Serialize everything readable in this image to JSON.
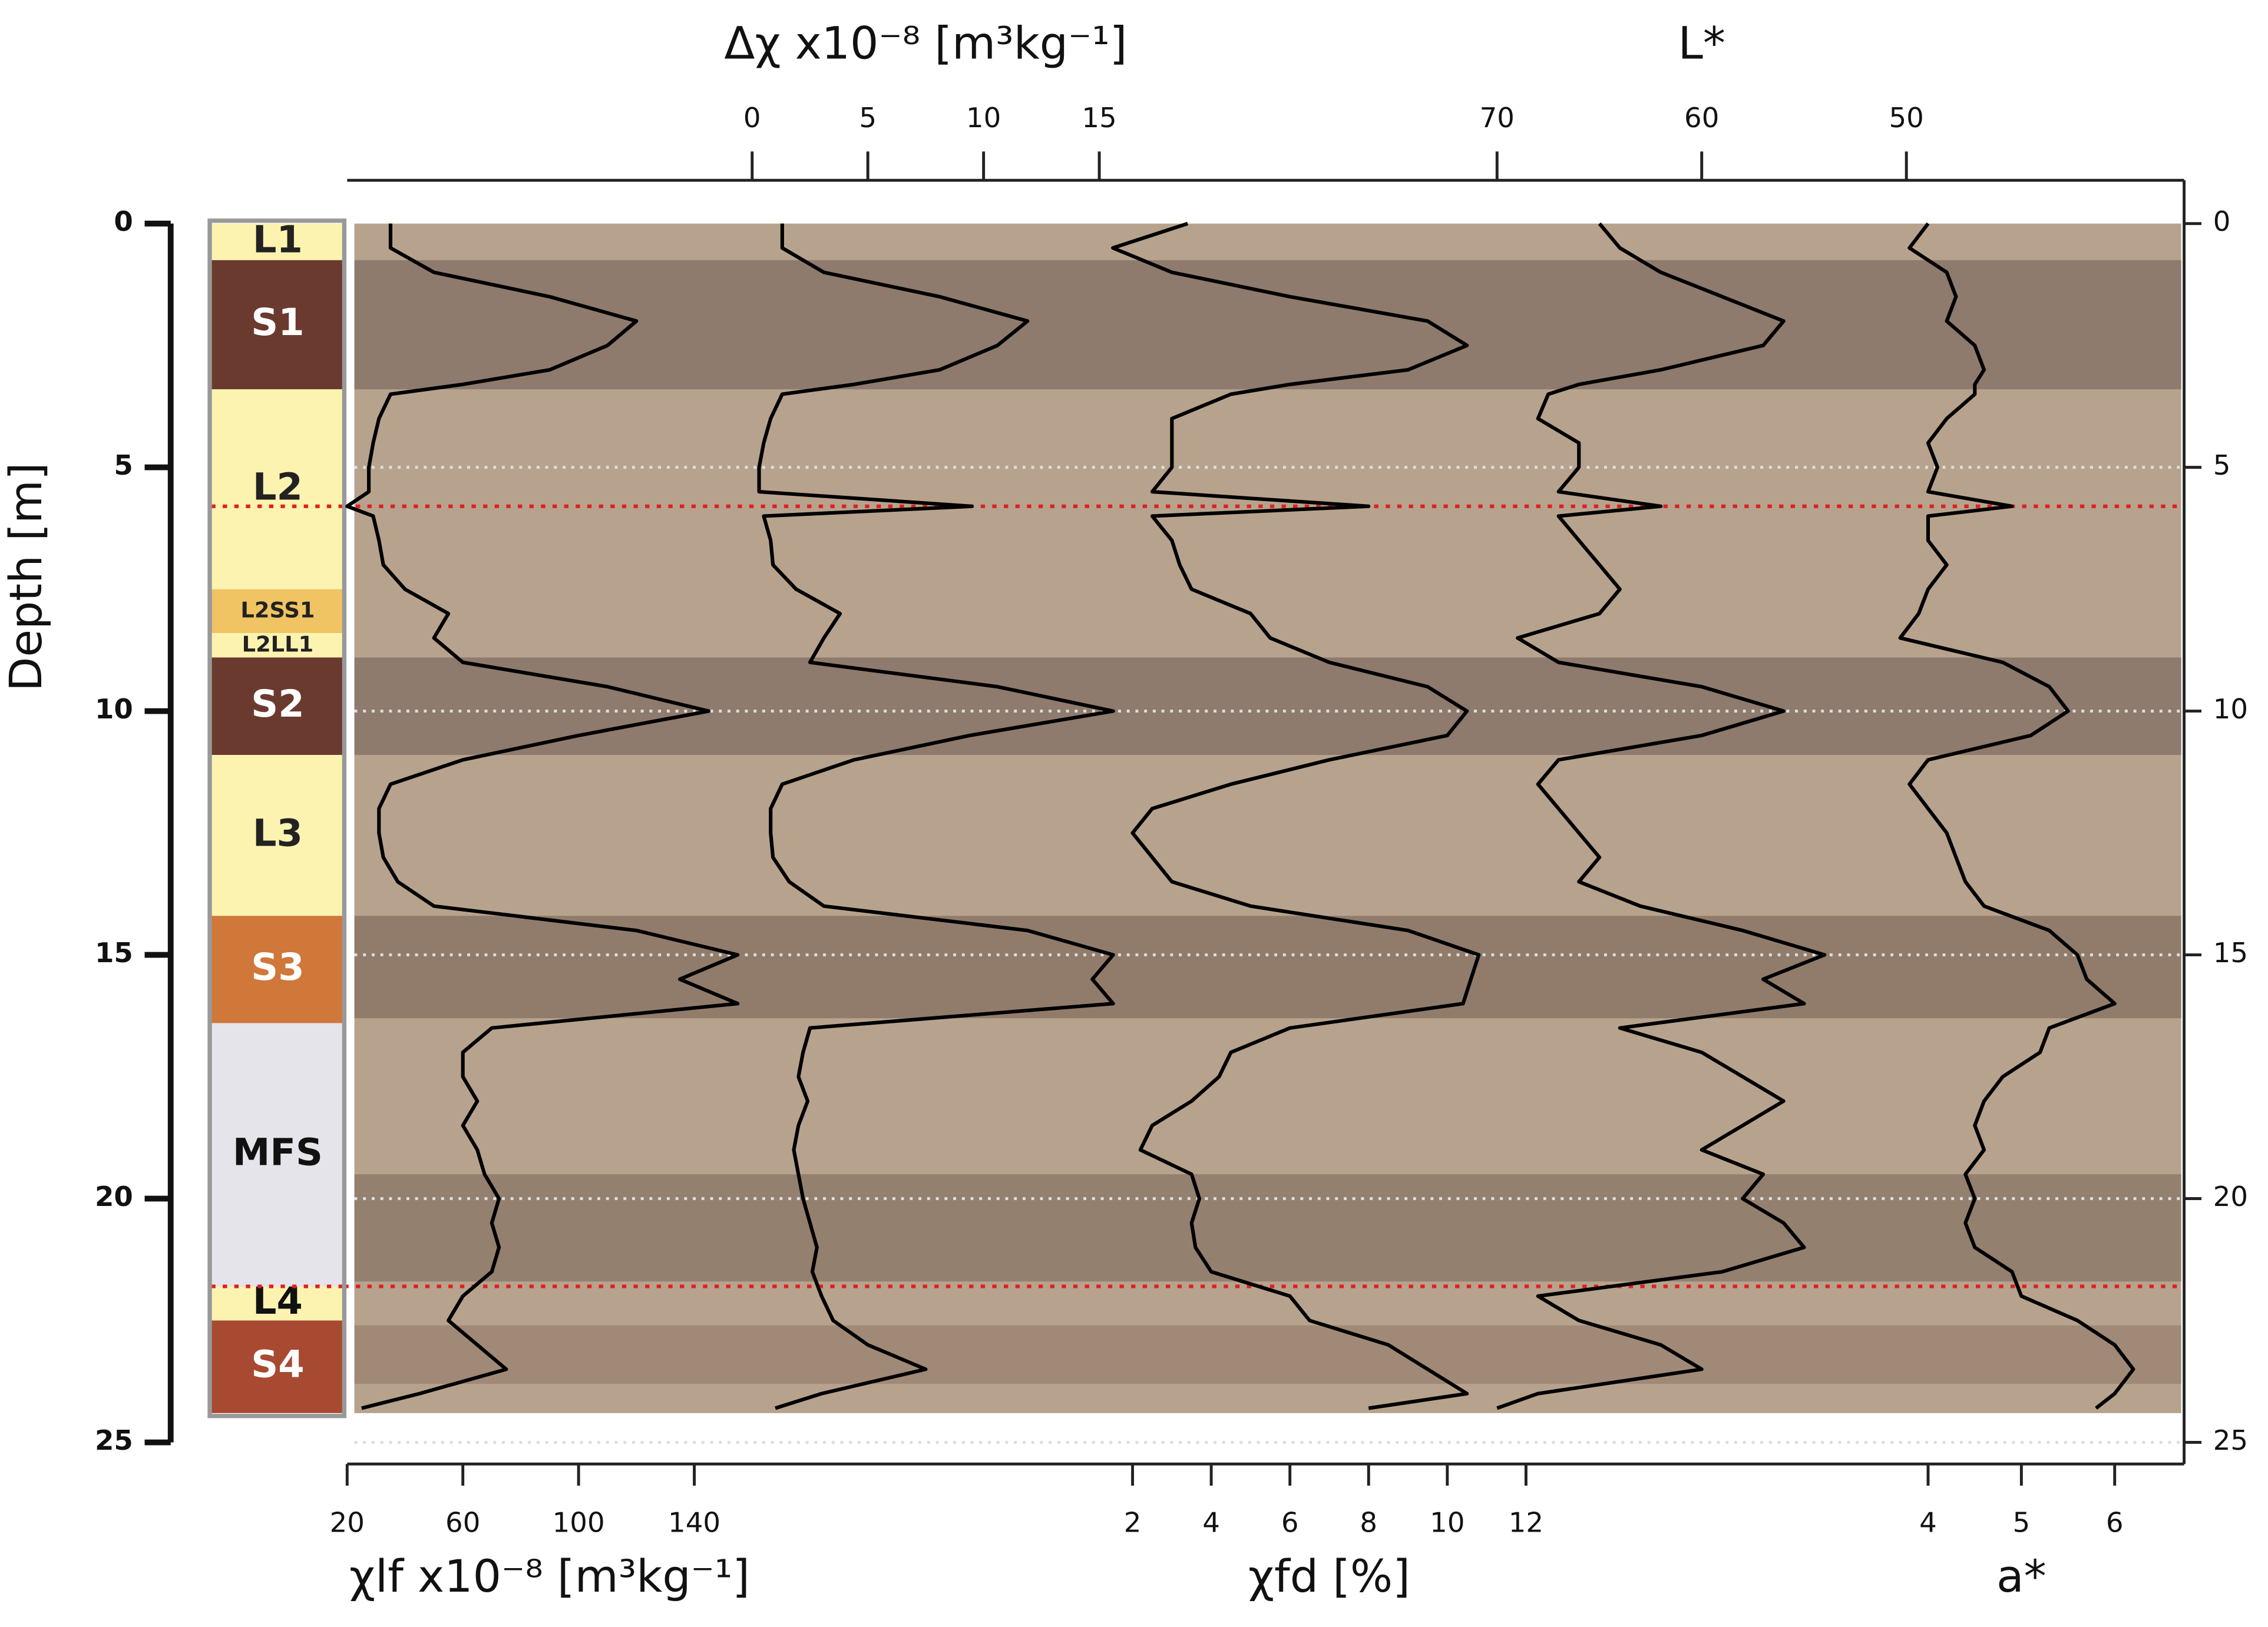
{
  "chart_data": {
    "type": "line",
    "ylabel": "Depth [m]",
    "ylim": [
      0,
      25
    ],
    "yticks": [
      0,
      5,
      10,
      15,
      20,
      25
    ],
    "grid": true,
    "y": [
      0,
      0.5,
      1,
      1.5,
      2,
      2.5,
      3,
      3.3,
      3.5,
      4,
      4.5,
      5,
      5.5,
      5.8,
      6,
      6.5,
      7,
      7.5,
      8,
      8.5,
      9,
      9.5,
      10,
      10.5,
      11,
      11.5,
      12,
      12.5,
      13,
      13.5,
      14,
      14.5,
      15,
      15.5,
      16,
      16.5,
      17,
      17.5,
      18,
      18.5,
      19,
      19.5,
      20,
      20.5,
      21,
      21.5,
      22,
      22.5,
      23,
      23.5,
      24,
      24.3
    ],
    "tracks": [
      {
        "label": "χlf x10⁻⁸ [m³kg⁻¹]",
        "axis": "bottom",
        "xlim": [
          20,
          160
        ],
        "xticks": [
          20,
          60,
          100,
          140
        ],
        "color": "#000000",
        "values": [
          35,
          35,
          50,
          90,
          120,
          110,
          90,
          60,
          35,
          31,
          29,
          27.5,
          27.5,
          20,
          29,
          31,
          32.5,
          40,
          55,
          50,
          60,
          110,
          145,
          100,
          60,
          35,
          31,
          31,
          32.5,
          37.5,
          50,
          120,
          155,
          135,
          155,
          70,
          60,
          60,
          65,
          60,
          65,
          67.5,
          72.5,
          70,
          72.5,
          70,
          60,
          55,
          65,
          75,
          45,
          25
        ]
      },
      {
        "label": "Δχ x10⁻⁸ [m³kg⁻¹]",
        "axis": "top",
        "xlim": [
          0,
          15
        ],
        "xticks": [
          0,
          5,
          10,
          15
        ],
        "color": "#000000",
        "values": [
          1.3,
          1.3,
          3.1,
          8.1,
          11.9,
          10.6,
          8.1,
          4.4,
          1.3,
          0.8,
          0.5,
          0.3,
          0.3,
          9.5,
          0.5,
          0.8,
          0.9,
          1.9,
          3.8,
          3.1,
          2.5,
          10.6,
          15.6,
          9.4,
          4.4,
          1.3,
          0.8,
          0.8,
          0.9,
          1.6,
          3.1,
          11.9,
          15.6,
          14.7,
          15.6,
          2.5,
          2.2,
          2,
          2.4,
          2,
          1.8,
          2,
          2.2,
          2.5,
          2.8,
          2.6,
          3,
          3.5,
          5,
          7.5,
          3,
          1
        ]
      },
      {
        "label": "χfd [%]",
        "axis": "bottom",
        "xlim": [
          2,
          12
        ],
        "xticks": [
          2,
          4,
          6,
          8,
          10,
          12
        ],
        "color": "#000000",
        "values": [
          3.4,
          1.5,
          3,
          6,
          9.5,
          10.5,
          9,
          6,
          4.5,
          3,
          3,
          3,
          2.5,
          8,
          2.5,
          3,
          3.2,
          3.5,
          5,
          5.5,
          7,
          9.5,
          10.5,
          10,
          7,
          4.5,
          2.5,
          2,
          2.5,
          3,
          5,
          9,
          10.8,
          10.6,
          10.4,
          6,
          4.5,
          4.2,
          3.5,
          2.5,
          2.2,
          3.5,
          3.7,
          3.5,
          3.6,
          4,
          6,
          6.5,
          8.5,
          9.5,
          10.5,
          8
        ]
      },
      {
        "label": "L*",
        "axis": "top",
        "xlim": [
          70,
          50
        ],
        "xticks": [
          70,
          60,
          50
        ],
        "color": "#000000",
        "values": [
          65,
          64,
          62,
          59,
          56,
          57,
          62,
          66,
          67.5,
          68,
          66,
          66,
          67,
          62,
          67,
          66,
          65,
          64,
          65,
          69,
          67,
          60,
          56,
          60,
          67,
          68,
          67,
          66,
          65,
          66,
          63,
          58,
          54,
          57,
          55,
          64,
          60,
          58,
          56,
          58,
          60,
          57,
          58,
          56,
          55,
          59,
          68,
          66,
          62,
          60,
          68,
          70
        ]
      },
      {
        "label": "a*",
        "axis": "bottom",
        "xlim": [
          4,
          6
        ],
        "xticks": [
          4,
          5,
          6
        ],
        "color": "#000000",
        "values": [
          4,
          3.8,
          4.2,
          4.3,
          4.2,
          4.5,
          4.6,
          4.5,
          4.5,
          4.2,
          4,
          4.1,
          4,
          4.9,
          4,
          4,
          4.2,
          4,
          3.9,
          3.7,
          4.8,
          5.3,
          5.5,
          5.1,
          4,
          3.8,
          4,
          4.2,
          4.3,
          4.4,
          4.6,
          5.3,
          5.6,
          5.7,
          6,
          5.3,
          5.2,
          4.8,
          4.6,
          4.5,
          4.6,
          4.4,
          4.5,
          4.4,
          4.5,
          4.9,
          5,
          5.6,
          6,
          6.2,
          6,
          5.8
        ]
      }
    ],
    "markers": [
      5.8,
      21.8
    ],
    "marker_color": "#e02020",
    "shading": [
      {
        "top": 0,
        "bottom": 24.4,
        "color": "#b7a38d"
      },
      {
        "top": 0.75,
        "bottom": 3.4,
        "color": "#8e7b6d"
      },
      {
        "top": 8.9,
        "bottom": 10.9,
        "color": "#8e7b6d"
      },
      {
        "top": 14.2,
        "bottom": 16.3,
        "color": "#917c6c"
      },
      {
        "top": 19.5,
        "bottom": 21.7,
        "color": "#94806f"
      },
      {
        "top": 22.6,
        "bottom": 23.8,
        "color": "#a08a77"
      }
    ],
    "stratigraphy": [
      {
        "label": "L1",
        "top": 0,
        "bottom": 0.75,
        "color": "#fdf3b0",
        "label_color": "#222222"
      },
      {
        "label": "S1",
        "top": 0.75,
        "bottom": 3.4,
        "color": "#6b3a2e",
        "label_color": "#ffffff"
      },
      {
        "label": "L2",
        "top": 3.4,
        "bottom": 7.5,
        "color": "#fdf3b0",
        "label_color": "#222222"
      },
      {
        "label": "L2SS1",
        "top": 7.5,
        "bottom": 8.4,
        "color": "#f0c462",
        "label_color": "#222222"
      },
      {
        "label": "L2LL1",
        "top": 8.4,
        "bottom": 8.9,
        "color": "#fdf3b0",
        "label_color": "#222222"
      },
      {
        "label": "S2",
        "top": 8.9,
        "bottom": 10.9,
        "color": "#6b3a2e",
        "label_color": "#ffffff"
      },
      {
        "label": "L3",
        "top": 10.9,
        "bottom": 14.2,
        "color": "#fdf3b0",
        "label_color": "#222222"
      },
      {
        "label": "S3",
        "top": 14.2,
        "bottom": 16.4,
        "color": "#d0773a",
        "label_color": "#ffffff"
      },
      {
        "label": "MFS",
        "top": 16.4,
        "bottom": 21.8,
        "color": "#e4e4ea",
        "label_color": "#111111"
      },
      {
        "label": "L4",
        "top": 21.8,
        "bottom": 22.5,
        "color": "#fdf3b0",
        "label_color": "#111111"
      },
      {
        "label": "S4",
        "top": 22.5,
        "bottom": 24.4,
        "color": "#a84a32",
        "label_color": "#ffffff"
      }
    ]
  }
}
